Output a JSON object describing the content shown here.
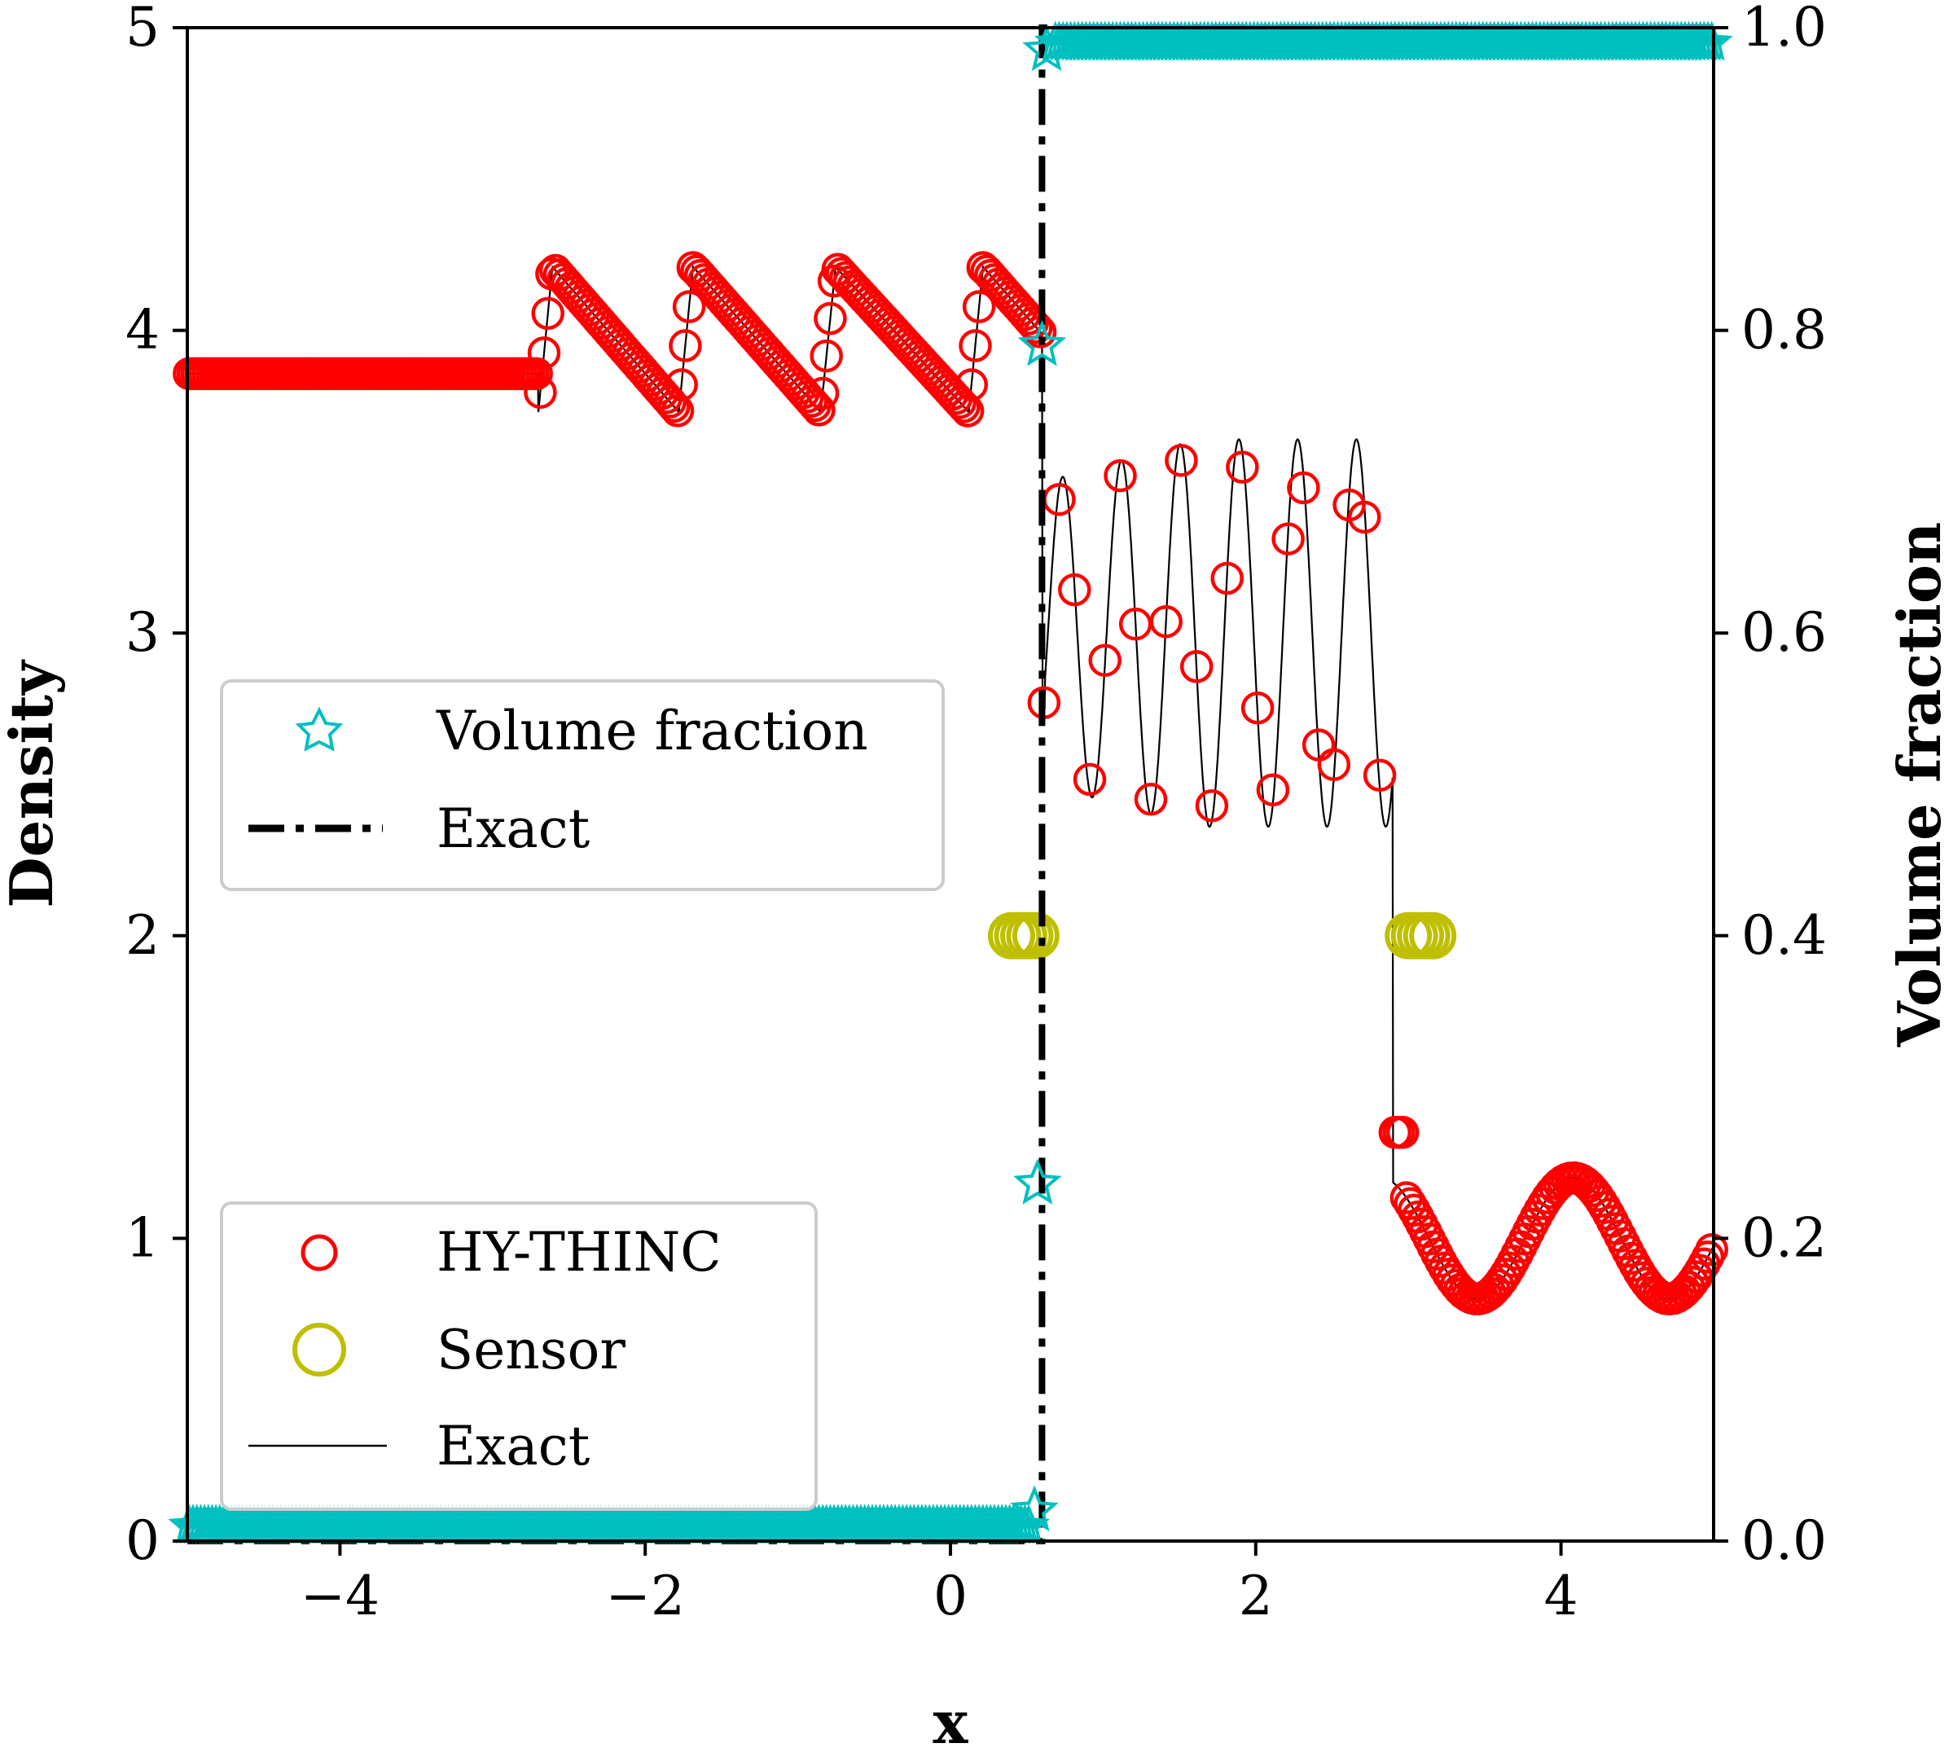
{
  "chart_data": {
    "type": "scatter",
    "xlabel": "x",
    "ylabel": "Density",
    "y2label": "Volume fraction",
    "xlim": [
      -5,
      5
    ],
    "ylim": [
      0,
      5
    ],
    "y2lim": [
      0,
      1
    ],
    "xticks": [
      -4,
      -2,
      0,
      2,
      4
    ],
    "xtick_labels": [
      "−4",
      "−2",
      "0",
      "2",
      "4"
    ],
    "yticks": [
      0,
      1,
      2,
      3,
      4,
      5
    ],
    "ytick_labels": [
      "0",
      "1",
      "2",
      "3",
      "4",
      "5"
    ],
    "y2ticks": [
      0,
      0.2,
      0.4,
      0.6,
      0.8,
      1.0
    ],
    "y2tick_labels": [
      "0.0",
      "0.2",
      "0.4",
      "0.6",
      "0.8",
      "1.0"
    ],
    "grid": false,
    "colors": {
      "hythinc": "#ff0000",
      "sensor": "#bfbf00",
      "volume": "#00bfbf",
      "exact": "#000000"
    },
    "series": [
      {
        "name": "HY-THINC",
        "axis": "left",
        "style": "open-circle",
        "description": "numerical density, sampled on uniform grid, follows exact solution"
      },
      {
        "name": "Sensor",
        "axis": "left",
        "style": "open-circle",
        "x": [
          0.4,
          0.44,
          0.48,
          0.52,
          0.56,
          3.0,
          3.04,
          3.08,
          3.12,
          3.16
        ],
        "y": [
          2,
          2,
          2,
          2,
          2,
          2,
          2,
          2,
          2,
          2
        ]
      },
      {
        "name": "Exact",
        "axis": "left",
        "style": "thin-line",
        "segments": [
          {
            "x_start": -5,
            "x_end": -2.7,
            "y": 3.857
          },
          {
            "x_start": -2.7,
            "x_end": 0.6,
            "type": "sawtooth",
            "min": 3.73,
            "max": 4.21,
            "period_breaks": [
              -2.7,
              -1.78,
              -0.85,
              0.12
            ]
          },
          {
            "x_start": 0.6,
            "x_end": 2.9,
            "type": "oscillation",
            "min": 2.37,
            "max": 3.65
          },
          {
            "x_start": 2.9,
            "x_end": 5,
            "type": "sine",
            "center": 1.0,
            "amplitude": 0.2,
            "period": 1.26,
            "peak_x": 4.08
          }
        ]
      },
      {
        "name": "Volume fraction",
        "axis": "right",
        "style": "open-star",
        "interface_points": [
          [
            0.55,
            0.02
          ],
          [
            0.57,
            0.236
          ],
          [
            0.6,
            0.79
          ],
          [
            0.63,
            0.985
          ]
        ],
        "left_value": 0.01,
        "right_value": 0.99,
        "interface_x": 0.6
      },
      {
        "name": "Exact",
        "axis": "right",
        "style": "dash-dot",
        "x": [
          -5,
          0.6,
          0.6,
          5
        ],
        "y": [
          0,
          0,
          1,
          1
        ]
      }
    ],
    "legends": [
      {
        "placement": "center-left",
        "entries": [
          "Volume fraction",
          "Exact"
        ]
      },
      {
        "placement": "lower-left",
        "entries": [
          "HY-THINC",
          "Sensor",
          "Exact"
        ]
      }
    ]
  }
}
